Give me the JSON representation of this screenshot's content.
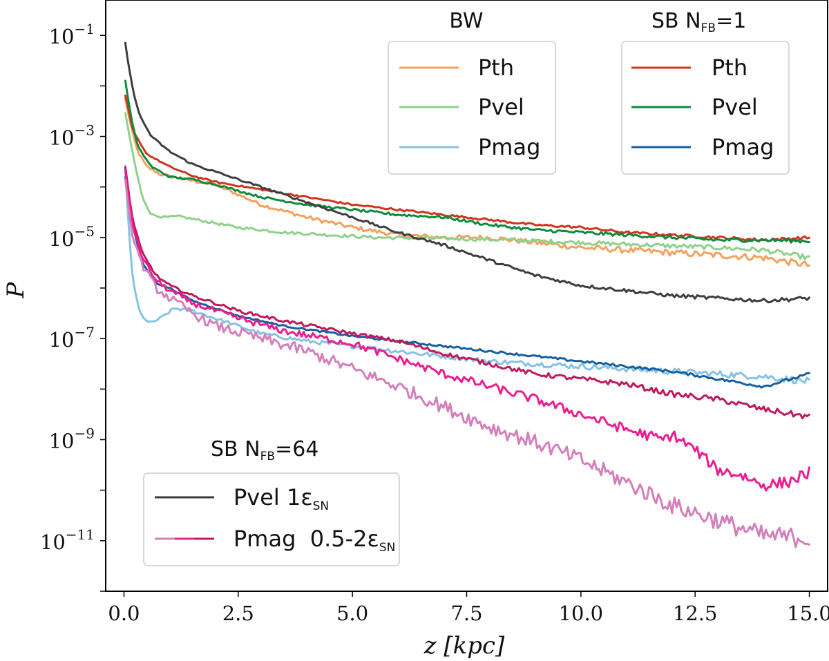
{
  "chart_data": {
    "type": "line",
    "xlabel": "z [kpc]",
    "ylabel": "P",
    "xlim": [
      -0.4,
      15.4
    ],
    "ylog": true,
    "ylim_exp": [
      -12,
      -0.3
    ],
    "xticks": [
      "0.0",
      "2.5",
      "5.0",
      "7.5",
      "10.0",
      "12.5",
      "15.0"
    ],
    "xtick_values": [
      0,
      2.5,
      5,
      7.5,
      10,
      12.5,
      15
    ],
    "ytick_exps": [
      -1,
      -3,
      -5,
      -7,
      -9,
      -11
    ],
    "legends": {
      "bw": {
        "title": "BW",
        "entries": [
          "Pth",
          "Pvel",
          "Pmag"
        ]
      },
      "sb1": {
        "title_main": "SB N",
        "title_sub": "FB",
        "title_tail": "=1",
        "entries": [
          "Pth",
          "Pvel",
          "Pmag"
        ]
      },
      "sb64": {
        "title_main": "SB N",
        "title_sub": "FB",
        "title_tail": "=64",
        "entries": [
          {
            "text": "Pvel 1ε",
            "sub": "SN"
          },
          {
            "text": "Pmag  0.5-2ε",
            "sub": "SN"
          }
        ]
      }
    },
    "series": [
      {
        "name": "BW Pth",
        "color": "#f4a15d",
        "noise": 0.07,
        "points": [
          [
            0.03,
            -2.25
          ],
          [
            0.15,
            -2.8
          ],
          [
            0.3,
            -3.3
          ],
          [
            0.5,
            -3.6
          ],
          [
            0.8,
            -3.75
          ],
          [
            1.2,
            -3.83
          ],
          [
            2,
            -3.95
          ],
          [
            3,
            -4.35
          ],
          [
            4,
            -4.6
          ],
          [
            5,
            -4.8
          ],
          [
            6,
            -4.95
          ],
          [
            7,
            -5.0
          ],
          [
            8,
            -5.0
          ],
          [
            9,
            -5.1
          ],
          [
            10,
            -5.2
          ],
          [
            11,
            -5.25
          ],
          [
            12,
            -5.3
          ],
          [
            13,
            -5.35
          ],
          [
            14,
            -5.4
          ],
          [
            15,
            -5.55
          ]
        ]
      },
      {
        "name": "BW Pvel",
        "color": "#8fd18a",
        "noise": 0.05,
        "points": [
          [
            0.03,
            -2.55
          ],
          [
            0.12,
            -3.0
          ],
          [
            0.25,
            -3.6
          ],
          [
            0.4,
            -4.2
          ],
          [
            0.6,
            -4.55
          ],
          [
            0.9,
            -4.6
          ],
          [
            1.2,
            -4.58
          ],
          [
            1.6,
            -4.65
          ],
          [
            2.5,
            -4.8
          ],
          [
            3.5,
            -4.9
          ],
          [
            4.5,
            -4.95
          ],
          [
            5.5,
            -5.0
          ],
          [
            7,
            -5.02
          ],
          [
            8.5,
            -5.05
          ],
          [
            10,
            -5.1
          ],
          [
            11.5,
            -5.15
          ],
          [
            13,
            -5.2
          ],
          [
            14,
            -5.25
          ],
          [
            15,
            -5.4
          ]
        ]
      },
      {
        "name": "BW Pmag",
        "color": "#86c2e3",
        "noise": 0.07,
        "points": [
          [
            0.03,
            -3.6
          ],
          [
            0.1,
            -4.8
          ],
          [
            0.2,
            -5.9
          ],
          [
            0.35,
            -6.5
          ],
          [
            0.55,
            -6.7
          ],
          [
            0.8,
            -6.6
          ],
          [
            1.1,
            -6.4
          ],
          [
            1.5,
            -6.45
          ],
          [
            2,
            -6.6
          ],
          [
            3,
            -6.9
          ],
          [
            4,
            -7.05
          ],
          [
            5,
            -7.15
          ],
          [
            6,
            -7.25
          ],
          [
            7,
            -7.35
          ],
          [
            8,
            -7.45
          ],
          [
            9,
            -7.5
          ],
          [
            10,
            -7.55
          ],
          [
            11,
            -7.6
          ],
          [
            12,
            -7.65
          ],
          [
            13,
            -7.7
          ],
          [
            14,
            -7.75
          ],
          [
            15,
            -7.85
          ]
        ]
      },
      {
        "name": "SB1 Pth",
        "color": "#d0341c",
        "noise": 0.03,
        "points": [
          [
            0.03,
            -2.2
          ],
          [
            0.2,
            -2.9
          ],
          [
            0.5,
            -3.35
          ],
          [
            1,
            -3.6
          ],
          [
            1.5,
            -3.78
          ],
          [
            2,
            -3.9
          ],
          [
            3,
            -4.05
          ],
          [
            4,
            -4.2
          ],
          [
            5,
            -4.35
          ],
          [
            6,
            -4.45
          ],
          [
            7,
            -4.55
          ],
          [
            8,
            -4.65
          ],
          [
            9,
            -4.75
          ],
          [
            10,
            -4.8
          ],
          [
            11,
            -4.9
          ],
          [
            12,
            -4.95
          ],
          [
            13,
            -5.0
          ],
          [
            14,
            -5.05
          ],
          [
            15,
            -5.0
          ]
        ]
      },
      {
        "name": "SB1 Pvel",
        "color": "#0d8a3c",
        "noise": 0.04,
        "points": [
          [
            0.03,
            -1.9
          ],
          [
            0.15,
            -2.6
          ],
          [
            0.3,
            -3.2
          ],
          [
            0.6,
            -3.6
          ],
          [
            1,
            -3.8
          ],
          [
            1.5,
            -3.85
          ],
          [
            2,
            -3.95
          ],
          [
            3,
            -4.2
          ],
          [
            4,
            -4.35
          ],
          [
            5,
            -4.45
          ],
          [
            6,
            -4.55
          ],
          [
            7,
            -4.6
          ],
          [
            8,
            -4.75
          ],
          [
            9,
            -4.85
          ],
          [
            10,
            -4.9
          ],
          [
            11,
            -4.95
          ],
          [
            12,
            -5.0
          ],
          [
            13,
            -5.05
          ],
          [
            14,
            -5.05
          ],
          [
            15,
            -5.07
          ]
        ]
      },
      {
        "name": "SB1 Pmag",
        "color": "#155fa0",
        "noise": 0.03,
        "points": [
          [
            0.03,
            -3.8
          ],
          [
            0.1,
            -4.2
          ],
          [
            0.2,
            -4.8
          ],
          [
            0.4,
            -5.5
          ],
          [
            0.7,
            -5.9
          ],
          [
            1,
            -6.0
          ],
          [
            1.5,
            -6.25
          ],
          [
            2.5,
            -6.55
          ],
          [
            3.5,
            -6.75
          ],
          [
            5,
            -6.95
          ],
          [
            6,
            -7.05
          ],
          [
            7,
            -7.15
          ],
          [
            8,
            -7.25
          ],
          [
            9,
            -7.35
          ],
          [
            10,
            -7.45
          ],
          [
            11,
            -7.55
          ],
          [
            12,
            -7.65
          ],
          [
            13,
            -7.8
          ],
          [
            14,
            -7.95
          ],
          [
            15,
            -7.7
          ]
        ]
      },
      {
        "name": "SB64 Pvel 1eSN",
        "color": "#3d3d3d",
        "noise": 0.04,
        "points": [
          [
            0.03,
            -1.15
          ],
          [
            0.1,
            -1.6
          ],
          [
            0.2,
            -2.1
          ],
          [
            0.35,
            -2.6
          ],
          [
            0.6,
            -3.0
          ],
          [
            1,
            -3.3
          ],
          [
            1.5,
            -3.55
          ],
          [
            2,
            -3.7
          ],
          [
            2.5,
            -3.85
          ],
          [
            3,
            -4.0
          ],
          [
            3.5,
            -4.15
          ],
          [
            4,
            -4.3
          ],
          [
            4.5,
            -4.45
          ],
          [
            5,
            -4.6
          ],
          [
            5.5,
            -4.75
          ],
          [
            6,
            -4.9
          ],
          [
            7,
            -5.15
          ],
          [
            8,
            -5.45
          ],
          [
            9,
            -5.75
          ],
          [
            10,
            -5.95
          ],
          [
            11,
            -6.05
          ],
          [
            12,
            -6.15
          ],
          [
            13,
            -6.2
          ],
          [
            14,
            -6.25
          ],
          [
            15,
            -6.2
          ]
        ]
      },
      {
        "name": "SB64 Pmag 2eSN",
        "color": "#c2185b",
        "noise": 0.06,
        "points": [
          [
            0.03,
            -3.6
          ],
          [
            0.1,
            -4.1
          ],
          [
            0.2,
            -4.7
          ],
          [
            0.4,
            -5.3
          ],
          [
            0.7,
            -5.75
          ],
          [
            1,
            -5.95
          ],
          [
            1.5,
            -6.15
          ],
          [
            2.5,
            -6.45
          ],
          [
            3.5,
            -6.65
          ],
          [
            5,
            -6.9
          ],
          [
            6,
            -7.05
          ],
          [
            7,
            -7.3
          ],
          [
            8,
            -7.5
          ],
          [
            9,
            -7.7
          ],
          [
            10,
            -7.8
          ],
          [
            11,
            -7.9
          ],
          [
            12,
            -8.1
          ],
          [
            13,
            -8.2
          ],
          [
            14,
            -8.4
          ],
          [
            15,
            -8.55
          ]
        ]
      },
      {
        "name": "SB64 Pmag 1eSN",
        "color": "#ec1d8c",
        "noise": 0.12,
        "points": [
          [
            0.03,
            -3.7
          ],
          [
            0.1,
            -4.2
          ],
          [
            0.2,
            -4.8
          ],
          [
            0.4,
            -5.4
          ],
          [
            0.7,
            -5.85
          ],
          [
            1,
            -6.05
          ],
          [
            1.5,
            -6.3
          ],
          [
            2.5,
            -6.6
          ],
          [
            3.5,
            -6.85
          ],
          [
            5,
            -7.1
          ],
          [
            6,
            -7.4
          ],
          [
            7,
            -7.7
          ],
          [
            8,
            -7.95
          ],
          [
            9,
            -8.2
          ],
          [
            10,
            -8.5
          ],
          [
            11,
            -8.8
          ],
          [
            11.8,
            -9.0
          ],
          [
            12,
            -8.9
          ],
          [
            12.5,
            -9.2
          ],
          [
            13,
            -9.6
          ],
          [
            13.5,
            -9.7
          ],
          [
            14,
            -9.9
          ],
          [
            14.5,
            -9.85
          ],
          [
            15,
            -9.65
          ]
        ]
      },
      {
        "name": "SB64 Pmag 0.5eSN",
        "color": "#d47fba",
        "noise": 0.2,
        "points": [
          [
            0.03,
            -3.9
          ],
          [
            0.1,
            -4.5
          ],
          [
            0.2,
            -5.0
          ],
          [
            0.4,
            -5.55
          ],
          [
            0.7,
            -6.0
          ],
          [
            1,
            -6.2
          ],
          [
            1.5,
            -6.5
          ],
          [
            2,
            -6.75
          ],
          [
            3,
            -7.0
          ],
          [
            4,
            -7.25
          ],
          [
            5,
            -7.6
          ],
          [
            6,
            -7.95
          ],
          [
            7,
            -8.35
          ],
          [
            8,
            -8.75
          ],
          [
            9,
            -9.05
          ],
          [
            10,
            -9.4
          ],
          [
            11,
            -9.85
          ],
          [
            12,
            -10.3
          ],
          [
            13,
            -10.6
          ],
          [
            14,
            -10.9
          ],
          [
            15,
            -10.95
          ]
        ]
      }
    ]
  }
}
